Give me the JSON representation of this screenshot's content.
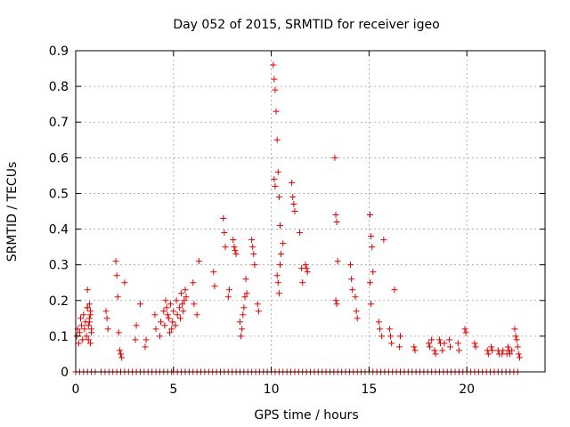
{
  "chart_data": {
    "type": "scatter",
    "title": "Day 052 of 2015, SRMTID for receiver igeo",
    "xlabel": "GPS time / hours",
    "ylabel": "SRMTID / TECUs",
    "xlim": [
      0,
      24
    ],
    "ylim": [
      0,
      0.9
    ],
    "xticks": [
      0,
      5,
      10,
      15,
      20
    ],
    "yticks": [
      0,
      0.1,
      0.2,
      0.3,
      0.4,
      0.5,
      0.6,
      0.7,
      0.8,
      0.9
    ],
    "xtick_labels": [
      "0",
      "5",
      "10",
      "15",
      "20"
    ],
    "ytick_labels": [
      "0",
      "0.1",
      "0.2",
      "0.3",
      "0.4",
      "0.5",
      "0.6",
      "0.7",
      "0.8",
      "0.9"
    ],
    "grid": true,
    "marker": "+",
    "color": "#e00000",
    "series": [
      {
        "name": "SRMTID",
        "x": [
          0.05,
          0.1,
          0.15,
          0.2,
          0.25,
          0.3,
          0.35,
          0.4,
          0.45,
          0.5,
          0.55,
          0.6,
          0.65,
          0.7,
          0.75,
          0.8,
          0.6,
          0.65,
          0.7,
          0.75,
          0.8,
          0.7,
          0.75,
          0.6,
          1.55,
          1.6,
          1.65,
          2.05,
          2.1,
          2.15,
          2.2,
          2.25,
          2.3,
          2.35,
          2.5,
          3.05,
          3.1,
          3.3,
          3.55,
          3.6,
          4.05,
          4.1,
          4.3,
          4.35,
          4.5,
          4.55,
          4.6,
          4.65,
          4.7,
          4.75,
          4.8,
          4.85,
          4.9,
          4.95,
          5.0,
          5.1,
          5.15,
          5.2,
          5.3,
          5.35,
          5.4,
          5.45,
          5.5,
          5.55,
          5.6,
          5.65,
          6.0,
          6.05,
          6.2,
          6.3,
          7.05,
          7.1,
          7.55,
          7.6,
          7.65,
          7.8,
          7.85,
          8.05,
          8.1,
          8.15,
          8.2,
          8.4,
          8.45,
          8.5,
          8.55,
          8.6,
          8.65,
          8.7,
          8.75,
          9.0,
          9.05,
          9.1,
          9.15,
          9.3,
          9.35,
          10.1,
          10.15,
          10.2,
          10.25,
          10.3,
          10.35,
          10.4,
          10.45,
          10.5,
          10.45,
          10.15,
          10.2,
          10.3,
          10.35,
          10.4,
          10.6,
          11.05,
          11.1,
          11.15,
          11.2,
          11.45,
          11.55,
          11.6,
          11.75,
          11.8,
          11.85,
          13.25,
          13.3,
          13.35,
          13.4,
          13.3,
          13.35,
          14.05,
          14.1,
          14.15,
          14.3,
          14.35,
          14.4,
          15.05,
          15.1,
          15.15,
          15.2,
          15.05,
          15.1,
          15.5,
          15.55,
          15.65,
          15.75,
          16.05,
          16.1,
          16.15,
          16.3,
          16.55,
          16.6,
          17.3,
          17.35,
          18.05,
          18.1,
          18.2,
          18.35,
          18.4,
          18.6,
          18.65,
          18.75,
          18.85,
          19.1,
          19.15,
          19.55,
          19.6,
          19.9,
          19.95,
          20.4,
          20.45,
          21.05,
          21.1,
          21.25,
          21.3,
          21.6,
          21.65,
          21.8,
          21.85,
          22.05,
          22.1,
          22.15,
          22.2,
          22.3,
          22.45,
          22.5,
          22.55,
          22.6,
          22.65,
          22.7
        ],
        "y": [
          0.1,
          0.12,
          0.08,
          0.11,
          0.15,
          0.13,
          0.09,
          0.16,
          0.12,
          0.14,
          0.1,
          0.18,
          0.13,
          0.15,
          0.17,
          0.12,
          0.23,
          0.09,
          0.19,
          0.16,
          0.11,
          0.14,
          0.08,
          0.18,
          0.17,
          0.15,
          0.12,
          0.31,
          0.27,
          0.21,
          0.11,
          0.06,
          0.05,
          0.04,
          0.25,
          0.09,
          0.13,
          0.19,
          0.07,
          0.09,
          0.16,
          0.12,
          0.1,
          0.14,
          0.17,
          0.13,
          0.2,
          0.18,
          0.16,
          0.15,
          0.11,
          0.19,
          0.12,
          0.14,
          0.17,
          0.13,
          0.2,
          0.16,
          0.18,
          0.15,
          0.22,
          0.19,
          0.17,
          0.2,
          0.23,
          0.21,
          0.25,
          0.19,
          0.16,
          0.31,
          0.28,
          0.24,
          0.43,
          0.39,
          0.35,
          0.21,
          0.23,
          0.37,
          0.35,
          0.34,
          0.33,
          0.14,
          0.1,
          0.12,
          0.16,
          0.18,
          0.21,
          0.26,
          0.22,
          0.37,
          0.35,
          0.33,
          0.3,
          0.19,
          0.17,
          0.86,
          0.82,
          0.79,
          0.73,
          0.65,
          0.56,
          0.49,
          0.41,
          0.33,
          0.3,
          0.54,
          0.52,
          0.27,
          0.25,
          0.22,
          0.36,
          0.53,
          0.49,
          0.47,
          0.45,
          0.39,
          0.29,
          0.25,
          0.3,
          0.29,
          0.28,
          0.6,
          0.44,
          0.42,
          0.31,
          0.2,
          0.19,
          0.3,
          0.26,
          0.23,
          0.21,
          0.17,
          0.15,
          0.44,
          0.38,
          0.35,
          0.28,
          0.25,
          0.19,
          0.14,
          0.12,
          0.1,
          0.37,
          0.12,
          0.1,
          0.08,
          0.23,
          0.07,
          0.1,
          0.07,
          0.06,
          0.08,
          0.07,
          0.09,
          0.06,
          0.05,
          0.09,
          0.08,
          0.06,
          0.08,
          0.09,
          0.07,
          0.08,
          0.06,
          0.12,
          0.11,
          0.08,
          0.07,
          0.06,
          0.05,
          0.07,
          0.06,
          0.06,
          0.05,
          0.05,
          0.06,
          0.05,
          0.07,
          0.06,
          0.05,
          0.06,
          0.12,
          0.1,
          0.09,
          0.07,
          0.05,
          0.04
        ]
      }
    ],
    "zero_band_x_ranges": [
      [
        0.0,
        1.1
      ],
      [
        1.3,
        4.9
      ],
      [
        5.0,
        10.6
      ],
      [
        10.8,
        13.0
      ],
      [
        13.2,
        22.6
      ]
    ]
  }
}
